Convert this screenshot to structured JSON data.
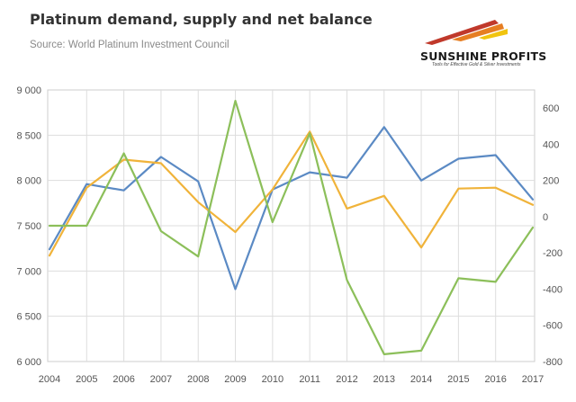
{
  "header": {
    "title": "Platinum demand, supply and net balance",
    "source": "Source: World Platinum Investment Council"
  },
  "logo": {
    "name": "SUNSHINE PROFITS",
    "tagline": "Tools for Effective Gold & Silver Investments",
    "colors": [
      "#c0392b",
      "#e67e22",
      "#f1c40f"
    ]
  },
  "colors": {
    "grid": "#dddddd",
    "frame": "#cccccc",
    "demand": "#5b8ac4",
    "supply": "#f0b33a",
    "balance": "#8cbf5a"
  },
  "chart_data": {
    "type": "line",
    "title": "Platinum demand, supply and net balance",
    "xlabel": "",
    "ylabel": "",
    "x": [
      "2004",
      "2005",
      "2006",
      "2007",
      "2008",
      "2009",
      "2010",
      "2011",
      "2012",
      "2013",
      "2014",
      "2015",
      "2016",
      "2017"
    ],
    "y_left": {
      "min": 6000,
      "max": 9000,
      "ticks": [
        "9 000",
        "8 500",
        "8 000",
        "7 500",
        "7 000",
        "6 500",
        "6 000"
      ]
    },
    "y_right": {
      "min": -800,
      "max": 700,
      "ticks": [
        "600",
        "400",
        "200",
        "0",
        "-200",
        "-400",
        "-600",
        "-800"
      ]
    },
    "grid": true,
    "series": [
      {
        "axis": "left",
        "values": [
          7240,
          7960,
          7890,
          8260,
          7990,
          6800,
          7900,
          8090,
          8030,
          8590,
          8000,
          8240,
          8280,
          7790
        ]
      },
      {
        "axis": "left",
        "values": [
          7170,
          7920,
          8230,
          8190,
          7760,
          7430,
          7900,
          8540,
          7690,
          7830,
          7260,
          7910,
          7920,
          7730
        ]
      },
      {
        "axis": "right",
        "values": [
          -50,
          -50,
          350,
          -80,
          -220,
          640,
          -30,
          460,
          -350,
          -760,
          -740,
          -340,
          -360,
          -60
        ]
      }
    ]
  }
}
